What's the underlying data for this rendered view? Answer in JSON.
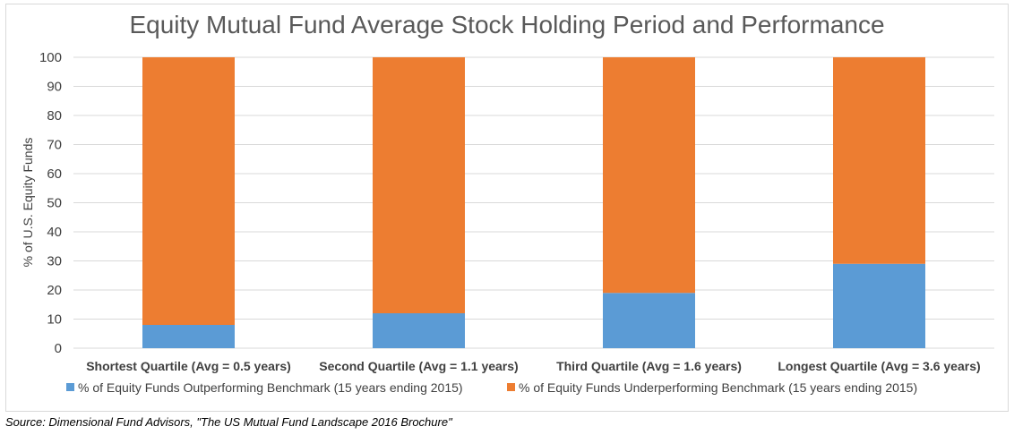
{
  "chart_data": {
    "type": "bar",
    "stacked": true,
    "title": "Equity Mutual Fund Average Stock Holding Period and Performance",
    "ylabel": "% of U.S. Equity Funds",
    "xlabel": "",
    "ylim": [
      0,
      100
    ],
    "yticks": [
      0,
      10,
      20,
      30,
      40,
      50,
      60,
      70,
      80,
      90,
      100
    ],
    "grid": true,
    "legend_position": "bottom",
    "categories": [
      "Shortest Quartile (Avg = 0.5 years)",
      "Second Quartile (Avg = 1.1 years)",
      "Third Quartile (Avg = 1.6 years)",
      "Longest Quartile (Avg = 3.6 years)"
    ],
    "series": [
      {
        "name": "% of Equity Funds Outperforming Benchmark (15 years ending 2015)",
        "color": "#5b9bd5",
        "values": [
          8,
          12,
          19,
          29
        ]
      },
      {
        "name": "% of Equity Funds Underperforming Benchmark (15 years ending 2015)",
        "color": "#ed7d31",
        "values": [
          92,
          88,
          81,
          71
        ]
      }
    ]
  },
  "source": "Source: Dimensional Fund Advisors, \"The US Mutual Fund Landscape 2016 Brochure\""
}
